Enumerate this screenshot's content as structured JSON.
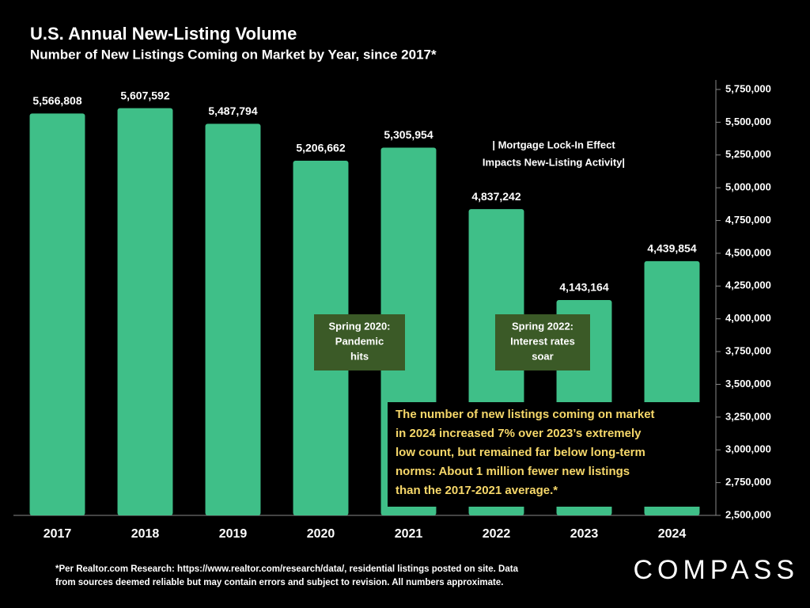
{
  "chart_data": {
    "type": "bar",
    "title": "U.S. Annual New-Listing Volume",
    "subtitle": "Number of New Listings Coming on Market by Year, since 2017*",
    "categories": [
      "2017",
      "2018",
      "2019",
      "2020",
      "2021",
      "2022",
      "2023",
      "2024"
    ],
    "values": [
      5566808,
      5607592,
      5487794,
      5206662,
      5305954,
      4837242,
      4143164,
      4439854
    ],
    "value_labels": [
      "5,566,808",
      "5,607,592",
      "5,487,794",
      "5,206,662",
      "5,305,954",
      "4,837,242",
      "4,143,164",
      "4,439,854"
    ],
    "color": "#3fbf88",
    "ylim": [
      2500000,
      5750000
    ],
    "yticks": [
      {
        "value": 2500000,
        "label": "2,500,000"
      },
      {
        "value": 2750000,
        "label": "2,750,000"
      },
      {
        "value": 3000000,
        "label": "3,000,000"
      },
      {
        "value": 3250000,
        "label": "3,250,000"
      },
      {
        "value": 3500000,
        "label": "3,500,000"
      },
      {
        "value": 3750000,
        "label": "3,750,000"
      },
      {
        "value": 4000000,
        "label": "4,000,000"
      },
      {
        "value": 4250000,
        "label": "4,250,000"
      },
      {
        "value": 4500000,
        "label": "4,500,000"
      },
      {
        "value": 4750000,
        "label": "4,750,000"
      },
      {
        "value": 5000000,
        "label": "5,000,000"
      },
      {
        "value": 5250000,
        "label": "5,250,000"
      },
      {
        "value": 5500000,
        "label": "5,500,000"
      },
      {
        "value": 5750000,
        "label": "5,750,000"
      }
    ],
    "annotations": {
      "pandemic": [
        "Spring 2020:",
        "Pandemic",
        "hits"
      ],
      "rates": [
        "Spring 2022:",
        "Interest rates",
        "soar"
      ],
      "lockin": [
        "| Mortgage Lock-In Effect",
        "Impacts New-Listing Activity|"
      ],
      "callout": [
        "The number of new listings coming on market",
        "in 2024 increased 7% over 2023’s extremely",
        "low count, but remained far below long-term",
        "norms:  About 1 million fewer new listings",
        "than the 2017-2021 average.*"
      ]
    },
    "footnote": [
      "*Per Realtor.com Research:  https://www.realtor.com/research/data/, residential listings posted on site. Data",
      "from sources deemed reliable but may contain errors and subject to revision. All numbers approximate."
    ],
    "logo": "COMPASS"
  }
}
